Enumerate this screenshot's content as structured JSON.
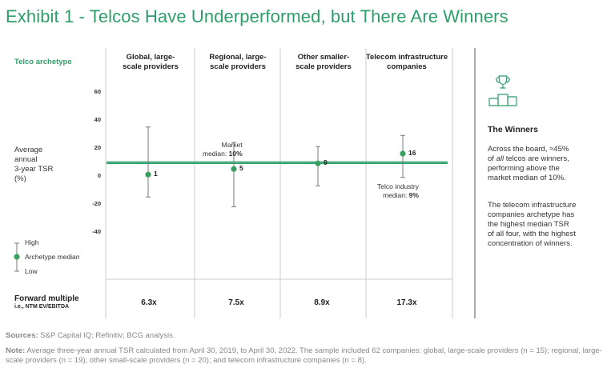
{
  "title": "Exhibit 1 - Telcos Have Underperformed, but There Are Winners",
  "archetype_label": "Telco archetype",
  "y_axis_label": [
    "Average",
    "annual",
    "3-year TSR",
    "(%)"
  ],
  "legend": {
    "high": "High",
    "median": "Archetype median",
    "low": "Low"
  },
  "annotations": {
    "market_line1": "Market",
    "market_prefix": "median: ",
    "market_value": "10%",
    "telco_line1": "Telco industry",
    "telco_prefix": "median: ",
    "telco_value": "9%"
  },
  "forward_multiple": {
    "title": "Forward multiple",
    "subtitle": "i.e., NTM EV/EBITDA",
    "values": [
      "6.3x",
      "7.5x",
      "8.9x",
      "17.3x"
    ]
  },
  "winners": {
    "title": "The Winners",
    "p1_a": "Across the board, ≈45%",
    "p1_of": "of ",
    "p1_all": "all",
    "p1_b": " telcos are winners,",
    "p1_c": "performing above the",
    "p1_d": "market median of 10%.",
    "p2_a": "The telecom infrastructure",
    "p2_b": "companies archetype has",
    "p2_c": "the highest median TSR",
    "p2_d": "of all four, with the highest",
    "p2_e": "concentration of winners."
  },
  "sources_label": "Sources:",
  "sources_text": " S&P Capital IQ; Refinitiv; BCG analysis.",
  "note_label": "Note:",
  "note_text": " Average three-year annual TSR calculated from April 30, 2019, to April 30, 2022. The sample included 62 companies: global, large-scale providers (n = 15); regional, large-scale providers (n = 19); other small-scale providers (n = 20); and telecom infrastructure companies (n = 8).",
  "colors": {
    "accent": "#2e9e6b",
    "marker": "#3aa05f",
    "whisker": "#7a7a7a",
    "divider": "#cccccc"
  },
  "chart_data": {
    "type": "range-dot",
    "categories": [
      "Global, large-scale providers",
      "Regional, large-scale providers",
      "Other smaller-scale providers",
      "Telecom infrastructure companies"
    ],
    "category_lines": [
      [
        "Global, large-",
        "scale providers"
      ],
      [
        "Regional, large-",
        "scale providers"
      ],
      [
        "Other smaller-",
        "scale providers"
      ],
      [
        "Telecom infrastructure",
        "companies"
      ]
    ],
    "median": [
      1,
      5,
      9,
      16
    ],
    "median_labels": [
      "1",
      "5",
      "9",
      "16"
    ],
    "high": [
      35,
      24,
      21,
      29
    ],
    "low": [
      -15,
      -22,
      -7,
      -1
    ],
    "market_median": 10,
    "telco_median": 9,
    "ylim": [
      -40,
      60
    ],
    "yticks": [
      60,
      40,
      20,
      0,
      -20,
      -40
    ],
    "ytick_labels": [
      "60",
      "40",
      "20",
      "0",
      "-20",
      "-40"
    ],
    "ylabel": "Average annual 3-year TSR (%)"
  }
}
